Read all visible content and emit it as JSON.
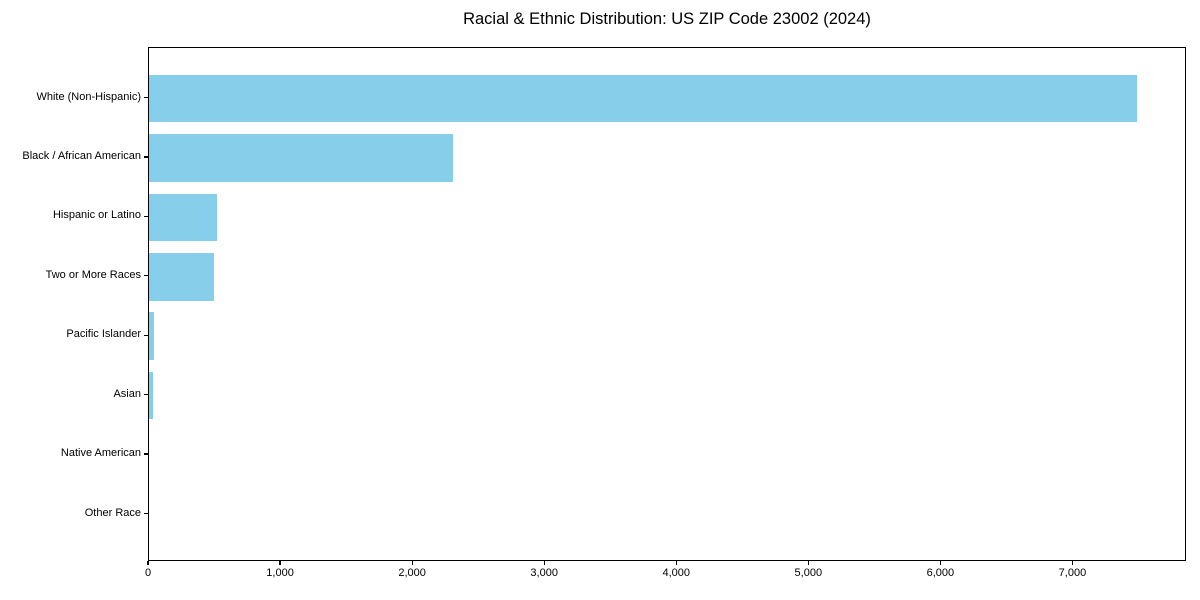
{
  "chart_data": {
    "type": "bar",
    "orientation": "horizontal",
    "title": "Racial & Ethnic Distribution: US ZIP Code 23002 (2024)",
    "categories": [
      "White (Non-Hispanic)",
      "Black / African American",
      "Hispanic or Latino",
      "Two or More Races",
      "Pacific Islander",
      "Asian",
      "Native American",
      "Other Race"
    ],
    "values": [
      7485,
      2305,
      515,
      490,
      35,
      30,
      0,
      0
    ],
    "xlabel": "",
    "ylabel": "",
    "xlim": [
      0,
      7860
    ],
    "x_ticks": [
      0,
      1000,
      2000,
      3000,
      4000,
      5000,
      6000,
      7000
    ],
    "x_tick_labels": [
      "0",
      "1,000",
      "2,000",
      "3,000",
      "4,000",
      "5,000",
      "6,000",
      "7,000"
    ],
    "bar_color": "#87CEEB",
    "axis_color": "#000000",
    "grid": false,
    "legend": null
  }
}
